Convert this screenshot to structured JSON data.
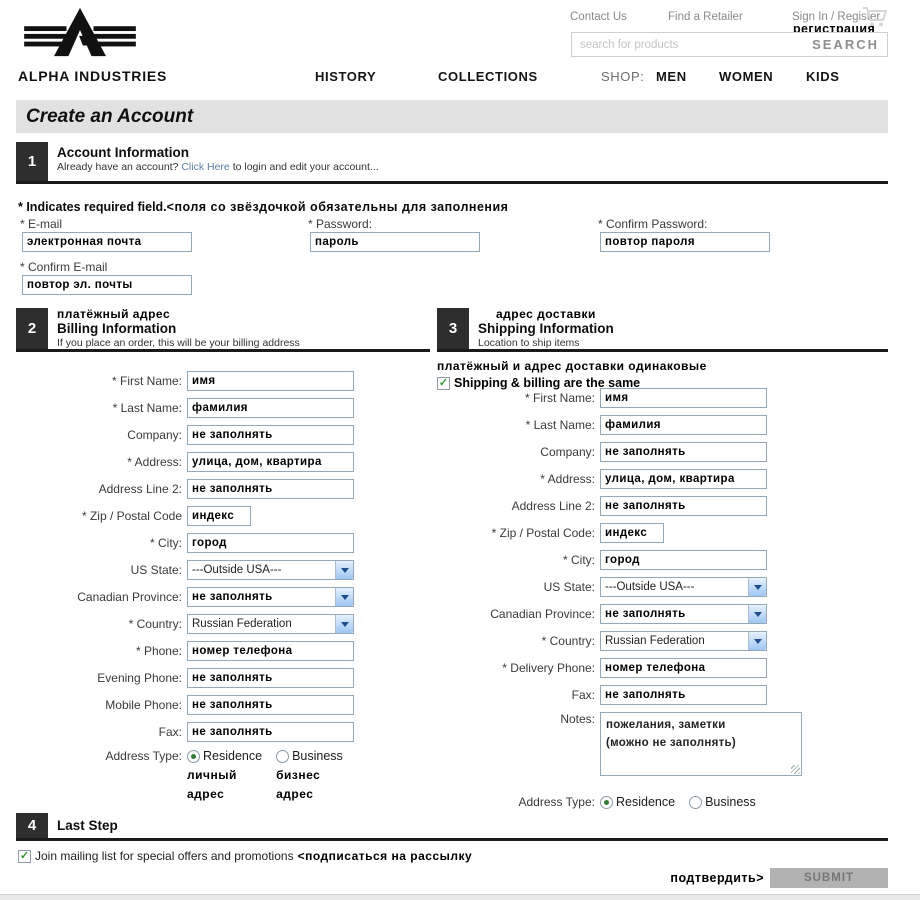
{
  "header": {
    "brand": "ALPHA INDUSTRIES",
    "top_links": [
      "Contact Us",
      "Find a Retailer",
      "Sign In / Register"
    ],
    "register_annotation": "регистрация",
    "search": {
      "placeholder": "search for products",
      "button": "SEARCH"
    },
    "nav": [
      {
        "label": "HISTORY"
      },
      {
        "label": "COLLECTIONS"
      },
      {
        "label": "SHOP:"
      },
      {
        "label": "MEN"
      },
      {
        "label": "WOMEN"
      },
      {
        "label": "KIDS"
      }
    ]
  },
  "page_title": "Create an Account",
  "sections": {
    "account": {
      "number": "1",
      "title": "Account Information",
      "subtitle_pre": "Already have an account? ",
      "subtitle_link": "Click Here",
      "subtitle_post": " to login and edit your account..."
    },
    "billing": {
      "number": "2",
      "annotation": "платёжный адрес",
      "title": "Billing Information",
      "subtitle": "If you place an order, this will be your billing address"
    },
    "shipping": {
      "number": "3",
      "annotation": "адрес доставки",
      "title": "Shipping Information",
      "subtitle": "Location to ship items"
    },
    "last": {
      "number": "4",
      "title": "Last Step"
    }
  },
  "required_note": {
    "en": "* Indicates required field.",
    "ru": "<поля со звёздочкой обязательны для заполнения"
  },
  "account_fields": [
    {
      "name": "email",
      "label": "* E-mail",
      "value": "электронная почта"
    },
    {
      "name": "password",
      "label": "* Password:",
      "value": "пароль"
    },
    {
      "name": "confirm-password",
      "label": "* Confirm Password:",
      "value": "повтор пароля"
    },
    {
      "name": "confirm-email",
      "label": "* Confirm E-mail",
      "value": "повтор эл. почты"
    }
  ],
  "shipping_same": {
    "annotation": "платёжный и адрес доставки одинаковые",
    "label": "Shipping & billing are the same",
    "checked": true
  },
  "billing_fields": [
    {
      "name": "first-name",
      "label": "* First Name:",
      "type": "text",
      "value": "имя",
      "bold": true
    },
    {
      "name": "last-name",
      "label": "* Last Name:",
      "type": "text",
      "value": "фамилия",
      "bold": true
    },
    {
      "name": "company",
      "label": "Company:",
      "type": "text",
      "value": "не заполнять",
      "bold": true
    },
    {
      "name": "address",
      "label": "* Address:",
      "type": "text",
      "value": "улица, дом, квартира",
      "bold": true
    },
    {
      "name": "address-line-2",
      "label": "Address Line 2:",
      "type": "text",
      "value": "не заполнять",
      "bold": true
    },
    {
      "name": "zip",
      "label": "* Zip / Postal Code",
      "type": "text_short",
      "value": "индекс",
      "bold": true
    },
    {
      "name": "city",
      "label": "* City:",
      "type": "text",
      "value": "город",
      "bold": true
    },
    {
      "name": "us-state",
      "label": "US State:",
      "type": "select",
      "value": "---Outside USA---",
      "bold": false
    },
    {
      "name": "canadian-province",
      "label": "Canadian Province:",
      "type": "select",
      "value": "не заполнять",
      "bold": true
    },
    {
      "name": "country",
      "label": "* Country:",
      "type": "select",
      "value": "Russian Federation",
      "bold": false
    },
    {
      "name": "phone",
      "label": "* Phone:",
      "type": "text",
      "value": "номер телефона",
      "bold": true
    },
    {
      "name": "evening-phone",
      "label": "Evening Phone:",
      "type": "text",
      "value": "не заполнять",
      "bold": true
    },
    {
      "name": "mobile-phone",
      "label": "Mobile Phone:",
      "type": "text",
      "value": "не заполнять",
      "bold": true
    },
    {
      "name": "fax",
      "label": "Fax:",
      "type": "text",
      "value": "не заполнять",
      "bold": true
    },
    {
      "name": "address-type",
      "label": "Address Type:",
      "type": "radio",
      "options": [
        {
          "label": "Residence",
          "checked": true,
          "annotation": "личный адрес"
        },
        {
          "label": "Business",
          "checked": false,
          "annotation": "бизнес адрес"
        }
      ]
    }
  ],
  "shipping_fields": [
    {
      "name": "first-name",
      "label": "* First Name:",
      "type": "text",
      "value": "имя",
      "bold": true
    },
    {
      "name": "last-name",
      "label": "* Last Name:",
      "type": "text",
      "value": "фамилия",
      "bold": true
    },
    {
      "name": "company",
      "label": "Company:",
      "type": "text",
      "value": "не заполнять",
      "bold": true
    },
    {
      "name": "address",
      "label": "* Address:",
      "type": "text",
      "value": "улица, дом, квартира",
      "bold": true
    },
    {
      "name": "address-line-2",
      "label": "Address Line 2:",
      "type": "text",
      "value": "не заполнять",
      "bold": true
    },
    {
      "name": "zip",
      "label": "* Zip / Postal Code:",
      "type": "text_short",
      "value": "индекс",
      "bold": true
    },
    {
      "name": "city",
      "label": "* City:",
      "type": "text",
      "value": "город",
      "bold": true
    },
    {
      "name": "us-state",
      "label": "US State:",
      "type": "select",
      "value": "---Outside USA---",
      "bold": false
    },
    {
      "name": "canadian-province",
      "label": "Canadian Province:",
      "type": "select",
      "value": "не заполнять",
      "bold": true
    },
    {
      "name": "country",
      "label": "* Country:",
      "type": "select",
      "value": "Russian Federation",
      "bold": false
    },
    {
      "name": "delivery-phone",
      "label": "* Delivery Phone:",
      "type": "text",
      "value": "номер телефона",
      "bold": true
    },
    {
      "name": "fax",
      "label": "Fax:",
      "type": "text",
      "value": "не заполнять",
      "bold": true
    },
    {
      "name": "notes",
      "label": "Notes:",
      "type": "textarea",
      "value": "пожелания, заметки\n(можно не заполнять)",
      "bold": true
    },
    {
      "name": "address-type",
      "label": "Address Type:",
      "type": "radio",
      "options": [
        {
          "label": "Residence",
          "checked": true
        },
        {
          "label": "Business",
          "checked": false
        }
      ]
    }
  ],
  "mailing_list": {
    "label": "Join mailing list for special offers and promotions ",
    "annotation": "<подписаться на рассылку",
    "checked": true
  },
  "submit": {
    "annotation": "подтвердить>",
    "button": "SUBMIT"
  }
}
